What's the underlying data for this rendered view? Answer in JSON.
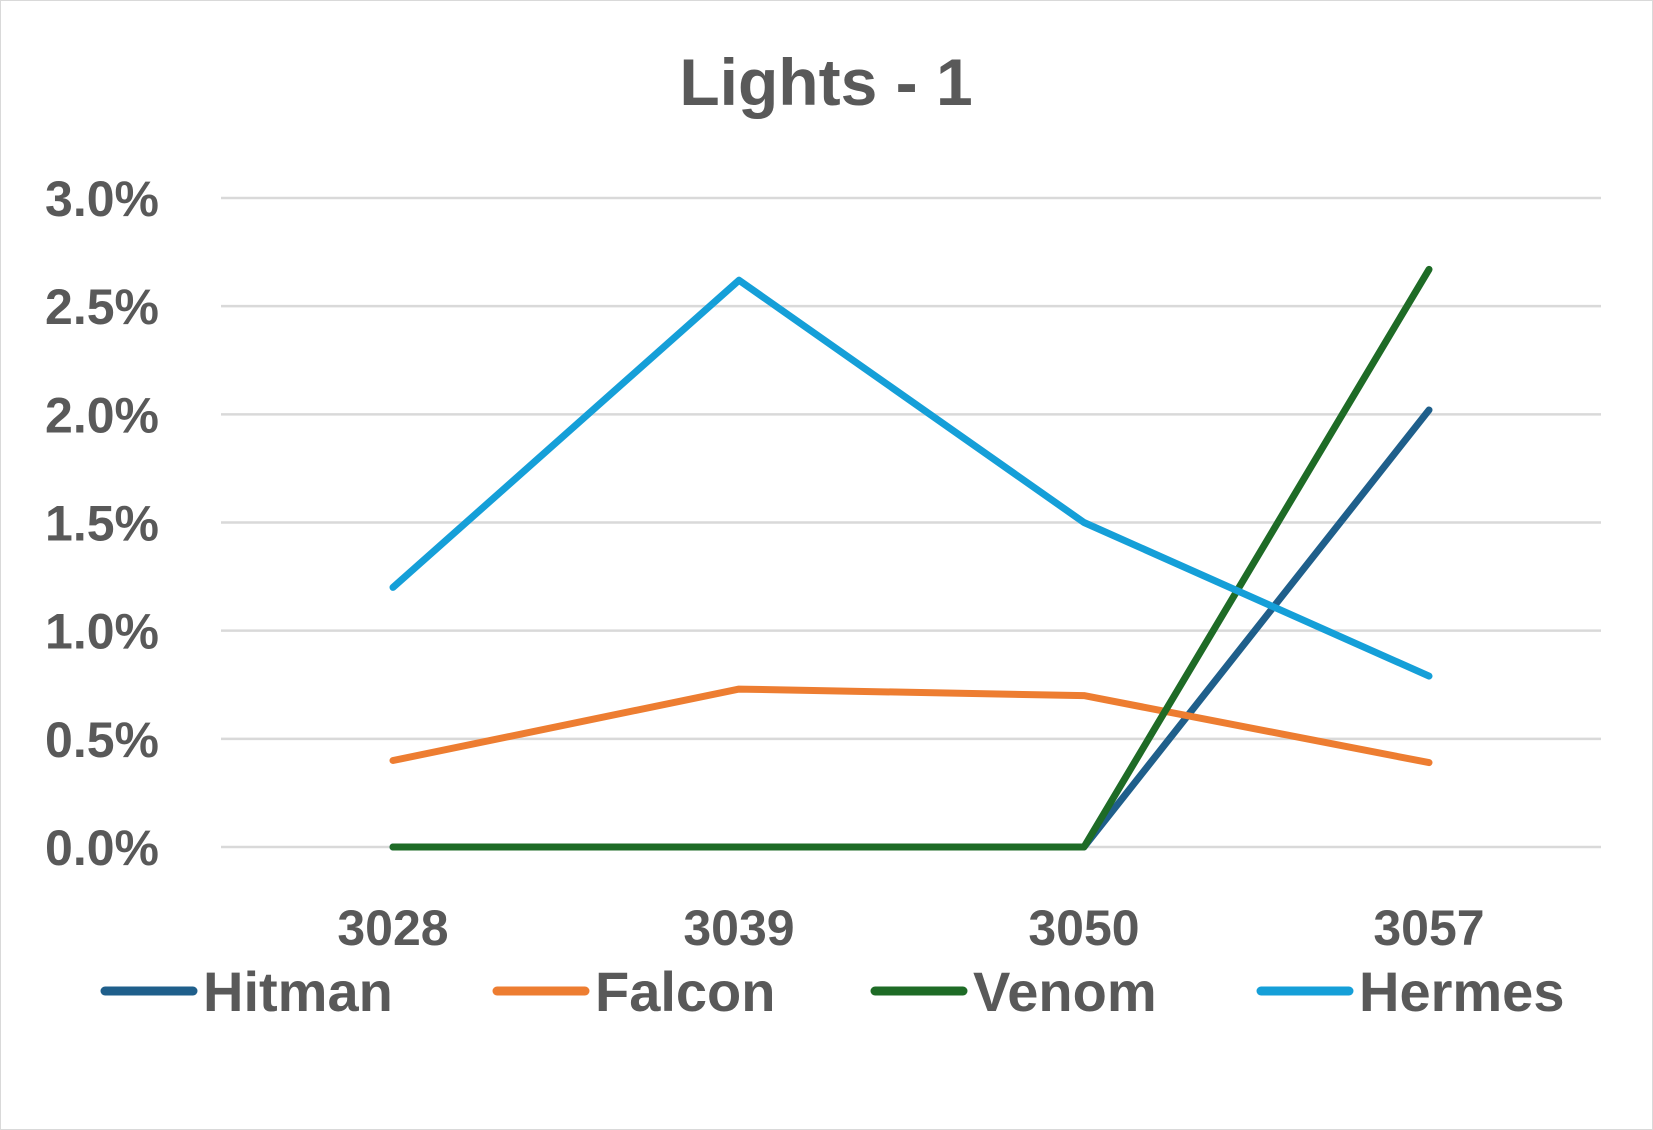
{
  "chart_data": {
    "type": "line",
    "title": "Lights - 1",
    "xlabel": "",
    "ylabel": "",
    "categories": [
      "3028",
      "3039",
      "3050",
      "3057"
    ],
    "y_tick_labels": [
      "0.0%",
      "0.5%",
      "1.0%",
      "1.5%",
      "2.0%",
      "2.5%",
      "3.0%"
    ],
    "y_ticks": [
      0,
      0.5,
      1.0,
      1.5,
      2.0,
      2.5,
      3.0
    ],
    "ylim": [
      0,
      3.0
    ],
    "y_unit": "%",
    "grid": true,
    "legend_position": "bottom",
    "series": [
      {
        "name": "Hitman",
        "color": "#1f5f8b",
        "values": [
          0,
          0,
          0,
          2.02
        ]
      },
      {
        "name": "Falcon",
        "color": "#ed7d31",
        "values": [
          0.4,
          0.73,
          0.7,
          0.39
        ]
      },
      {
        "name": "Venom",
        "color": "#1e6b26",
        "values": [
          0,
          0,
          0,
          2.67
        ]
      },
      {
        "name": "Hermes",
        "color": "#159fd8",
        "values": [
          1.2,
          2.62,
          1.5,
          0.79
        ]
      }
    ]
  }
}
